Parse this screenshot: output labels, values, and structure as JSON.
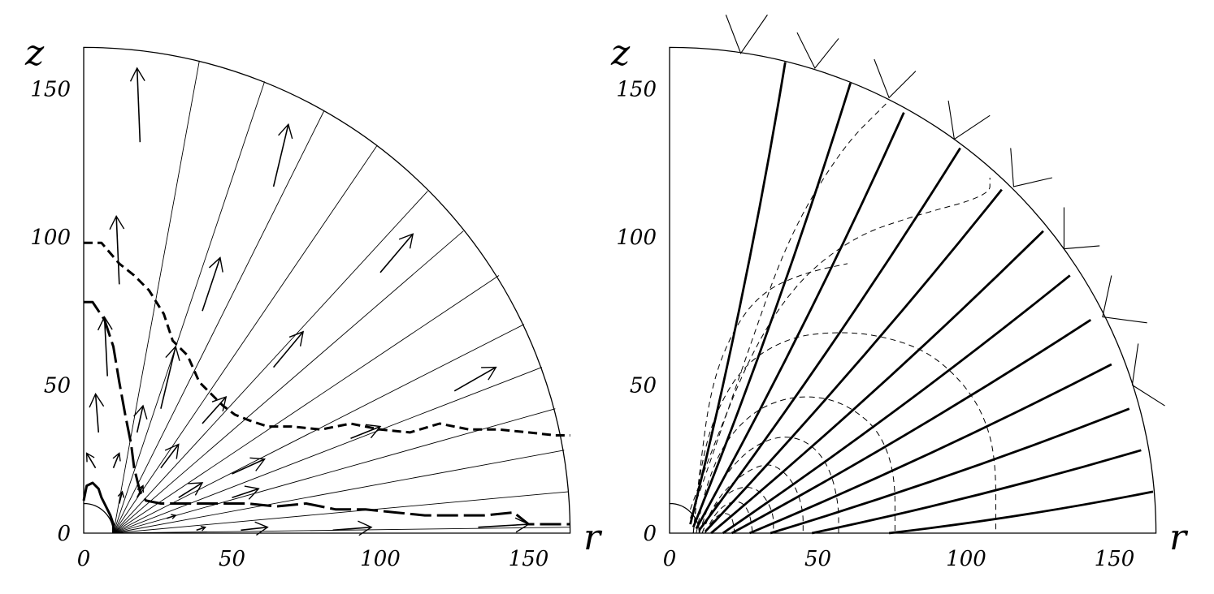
{
  "panels": [
    {
      "id": "left",
      "xlabel": "r",
      "ylabel": "z",
      "xticks": [
        "0",
        "50",
        "100",
        "150"
      ],
      "yticks": [
        "0",
        "50",
        "100",
        "150"
      ],
      "xlim": [
        0,
        165
      ],
      "ylim": [
        0,
        165
      ],
      "outer_radius": 164,
      "inner_radius": 10,
      "grid_lines": [
        {
          "start": [
            10,
            0
          ],
          "end": [
            39,
            159.5
          ]
        },
        {
          "start": [
            10,
            0
          ],
          "end": [
            61,
            152.5
          ]
        },
        {
          "start": [
            10,
            0
          ],
          "end": [
            81,
            142.5
          ]
        },
        {
          "start": [
            10,
            0
          ],
          "end": [
            99,
            131
          ]
        },
        {
          "start": [
            10,
            0
          ],
          "end": [
            116,
            115.5
          ]
        },
        {
          "start": [
            10,
            0
          ],
          "end": [
            128,
            102
          ]
        },
        {
          "start": [
            10,
            0
          ],
          "end": [
            140,
            87
          ]
        },
        {
          "start": [
            10,
            0
          ],
          "end": [
            148.5,
            70.5
          ]
        },
        {
          "start": [
            10,
            0
          ],
          "end": [
            154.5,
            56
          ]
        },
        {
          "start": [
            10,
            0
          ],
          "end": [
            159,
            42
          ]
        },
        {
          "start": [
            10,
            0
          ],
          "end": [
            162,
            28
          ]
        },
        {
          "start": [
            10,
            0
          ],
          "end": [
            163.5,
            14
          ]
        },
        {
          "start": [
            10,
            0
          ],
          "end": [
            164,
            2
          ]
        }
      ],
      "arrows": [
        {
          "from": [
            19,
            132
          ],
          "to": [
            18,
            157
          ]
        },
        {
          "from": [
            64,
            117
          ],
          "to": [
            69,
            138
          ]
        },
        {
          "from": [
            12,
            84
          ],
          "to": [
            11,
            107
          ]
        },
        {
          "from": [
            40,
            75
          ],
          "to": [
            46,
            93
          ]
        },
        {
          "from": [
            100,
            88
          ],
          "to": [
            111,
            101
          ]
        },
        {
          "from": [
            8,
            53
          ],
          "to": [
            7,
            73
          ]
        },
        {
          "from": [
            26,
            42
          ],
          "to": [
            31,
            63
          ]
        },
        {
          "from": [
            64,
            56
          ],
          "to": [
            74,
            68
          ]
        },
        {
          "from": [
            125,
            48
          ],
          "to": [
            139,
            56
          ]
        },
        {
          "from": [
            5,
            34
          ],
          "to": [
            4,
            47
          ]
        },
        {
          "from": [
            18,
            34
          ],
          "to": [
            20,
            43
          ]
        },
        {
          "from": [
            40,
            37
          ],
          "to": [
            48,
            46
          ]
        },
        {
          "from": [
            4,
            22
          ],
          "to": [
            1,
            27
          ]
        },
        {
          "from": [
            10,
            22
          ],
          "to": [
            12,
            27
          ]
        },
        {
          "from": [
            26,
            22
          ],
          "to": [
            32,
            30
          ]
        },
        {
          "from": [
            50,
            20
          ],
          "to": [
            61,
            25
          ]
        },
        {
          "from": [
            90,
            32
          ],
          "to": [
            100,
            36
          ]
        },
        {
          "from": [
            12,
            10
          ],
          "to": [
            13,
            14
          ]
        },
        {
          "from": [
            18,
            12
          ],
          "to": [
            20,
            16
          ]
        },
        {
          "from": [
            32,
            12
          ],
          "to": [
            40,
            17
          ]
        },
        {
          "from": [
            50,
            12
          ],
          "to": [
            59,
            15
          ]
        },
        {
          "from": [
            28,
            5
          ],
          "to": [
            31,
            6
          ]
        },
        {
          "from": [
            38,
            1
          ],
          "to": [
            41,
            2
          ]
        },
        {
          "from": [
            53,
            1
          ],
          "to": [
            62,
            2
          ]
        },
        {
          "from": [
            84,
            1
          ],
          "to": [
            97,
            2
          ]
        },
        {
          "from": [
            133,
            2
          ],
          "to": [
            150,
            3
          ]
        }
      ],
      "curves": [
        {
          "style": "dashed",
          "points": [
            [
              0,
              98
            ],
            [
              6,
              98
            ],
            [
              12,
              91
            ],
            [
              17,
              87
            ],
            [
              22,
              82
            ],
            [
              27,
              74
            ],
            [
              30,
              65
            ],
            [
              35,
              60
            ],
            [
              39,
              51
            ],
            [
              43,
              47
            ],
            [
              47,
              43
            ],
            [
              51,
              40
            ],
            [
              56,
              38
            ],
            [
              62,
              36
            ],
            [
              70,
              36
            ],
            [
              80,
              35
            ],
            [
              90,
              37
            ],
            [
              100,
              35
            ],
            [
              110,
              34
            ],
            [
              120,
              37
            ],
            [
              130,
              35
            ],
            [
              140,
              35
            ],
            [
              150,
              34
            ],
            [
              159,
              33
            ],
            [
              164,
              33
            ]
          ]
        },
        {
          "style": "long-dashed",
          "points": [
            [
              0,
              78
            ],
            [
              3,
              78
            ],
            [
              7,
              72
            ],
            [
              10,
              63
            ],
            [
              12,
              51
            ],
            [
              14,
              40
            ],
            [
              16,
              30
            ],
            [
              17,
              22
            ],
            [
              19,
              14
            ],
            [
              21,
              11
            ],
            [
              26,
              10
            ],
            [
              35,
              10
            ],
            [
              45,
              10
            ],
            [
              55,
              10
            ],
            [
              65,
              9
            ],
            [
              75,
              10
            ],
            [
              85,
              8
            ],
            [
              95,
              8
            ],
            [
              105,
              7
            ],
            [
              115,
              6
            ],
            [
              125,
              6
            ],
            [
              135,
              6
            ],
            [
              145,
              7
            ],
            [
              150,
              3
            ],
            [
              164,
              3
            ]
          ]
        },
        {
          "style": "solid",
          "points": [
            [
              0,
              11
            ],
            [
              1,
              16
            ],
            [
              3,
              17
            ],
            [
              5,
              15
            ],
            [
              6,
              12
            ],
            [
              7,
              10
            ],
            [
              9,
              6
            ],
            [
              10,
              3
            ],
            [
              10,
              0
            ]
          ]
        }
      ]
    },
    {
      "id": "right",
      "xlabel": "r",
      "ylabel": "z",
      "xticks": [
        "0",
        "50",
        "100",
        "150"
      ],
      "yticks": [
        "0",
        "50",
        "100",
        "150"
      ],
      "xlim": [
        0,
        165
      ],
      "ylim": [
        0,
        165
      ],
      "outer_radius": 164,
      "inner_radius": 10,
      "field_lines": [
        {
          "start": [
            7,
            3
          ],
          "end": [
            39,
            159
          ]
        },
        {
          "start": [
            8,
            2
          ],
          "end": [
            61,
            152
          ]
        },
        {
          "start": [
            9,
            1.5
          ],
          "end": [
            79,
            142
          ]
        },
        {
          "start": [
            10,
            1
          ],
          "end": [
            98,
            130
          ]
        },
        {
          "start": [
            12,
            0.5
          ],
          "end": [
            112,
            116
          ]
        },
        {
          "start": [
            14,
            0
          ],
          "end": [
            126,
            102
          ]
        },
        {
          "start": [
            18,
            0
          ],
          "end": [
            135,
            87
          ]
        },
        {
          "start": [
            21,
            0
          ],
          "end": [
            142,
            72
          ]
        },
        {
          "start": [
            27,
            0
          ],
          "end": [
            149,
            57
          ]
        },
        {
          "start": [
            34,
            0
          ],
          "end": [
            155,
            42
          ]
        },
        {
          "start": [
            48,
            0
          ],
          "end": [
            159,
            28
          ]
        },
        {
          "start": [
            74,
            0
          ],
          "end": [
            163,
            14
          ]
        }
      ],
      "level_curves": [
        [
          [
            7,
            5
          ],
          [
            14,
            25
          ],
          [
            26,
            60
          ],
          [
            40,
            100
          ],
          [
            58,
            130
          ],
          [
            73,
            145
          ]
        ],
        [
          [
            7,
            8
          ],
          [
            15,
            30
          ],
          [
            28,
            62
          ],
          [
            43,
            85
          ],
          [
            62,
            100
          ],
          [
            82,
            107
          ],
          [
            108,
            114
          ],
          [
            108,
            120
          ]
        ],
        [
          [
            8,
            0
          ],
          [
            10,
            20
          ],
          [
            14,
            50
          ],
          [
            22,
            70
          ],
          [
            32,
            82
          ],
          [
            46,
            88
          ],
          [
            60,
            91
          ]
        ],
        [
          [
            8,
            0
          ],
          [
            10,
            20
          ],
          [
            15,
            40
          ],
          [
            25,
            57
          ],
          [
            40,
            66
          ],
          [
            55,
            68
          ],
          [
            70,
            67
          ],
          [
            86,
            62
          ],
          [
            98,
            52
          ],
          [
            106,
            40
          ],
          [
            110,
            25
          ],
          [
            110,
            0
          ]
        ],
        [
          [
            9,
            0
          ],
          [
            12,
            15
          ],
          [
            18,
            30
          ],
          [
            28,
            41
          ],
          [
            40,
            46
          ],
          [
            52,
            46
          ],
          [
            62,
            42
          ],
          [
            71,
            34
          ],
          [
            76,
            20
          ],
          [
            76,
            0
          ]
        ],
        [
          [
            10,
            0
          ],
          [
            14,
            12
          ],
          [
            22,
            24
          ],
          [
            31,
            31
          ],
          [
            40,
            33
          ],
          [
            48,
            30
          ],
          [
            54,
            22
          ],
          [
            57,
            10
          ],
          [
            57,
            0
          ]
        ],
        [
          [
            11,
            0
          ],
          [
            15,
            10
          ],
          [
            22,
            18
          ],
          [
            30,
            23
          ],
          [
            36,
            23
          ],
          [
            42,
            17
          ],
          [
            45,
            8
          ],
          [
            45,
            0
          ]
        ],
        [
          [
            11,
            0
          ],
          [
            14,
            8
          ],
          [
            20,
            14
          ],
          [
            26,
            16
          ],
          [
            31,
            14
          ],
          [
            35,
            7
          ],
          [
            35,
            0
          ]
        ],
        [
          [
            12,
            0
          ],
          [
            15,
            6
          ],
          [
            19,
            10
          ],
          [
            24,
            11
          ],
          [
            27,
            7
          ],
          [
            28,
            0
          ]
        ],
        [
          [
            12,
            0
          ],
          [
            15,
            5
          ],
          [
            18,
            7
          ],
          [
            21,
            6
          ],
          [
            22,
            0
          ]
        ]
      ],
      "outer_ticks": [
        {
          "base": [
            24,
            162
          ],
          "a": [
            19,
            175
          ],
          "b": [
            33,
            175
          ]
        },
        {
          "base": [
            49,
            157
          ],
          "a": [
            43,
            169
          ],
          "b": [
            57,
            167
          ]
        },
        {
          "base": [
            74,
            147
          ],
          "a": [
            69,
            160
          ],
          "b": [
            83,
            156
          ]
        },
        {
          "base": [
            96,
            133
          ],
          "a": [
            94,
            146
          ],
          "b": [
            108,
            141
          ]
        },
        {
          "base": [
            116,
            117
          ],
          "a": [
            115,
            130
          ],
          "b": [
            129,
            120
          ]
        },
        {
          "base": [
            133,
            96
          ],
          "a": [
            133,
            110
          ],
          "b": [
            145,
            97
          ]
        },
        {
          "base": [
            146,
            73
          ],
          "a": [
            149,
            87
          ],
          "b": [
            161,
            71
          ]
        },
        {
          "base": [
            156,
            50
          ],
          "a": [
            158,
            64
          ],
          "b": [
            167,
            43
          ]
        }
      ]
    }
  ]
}
